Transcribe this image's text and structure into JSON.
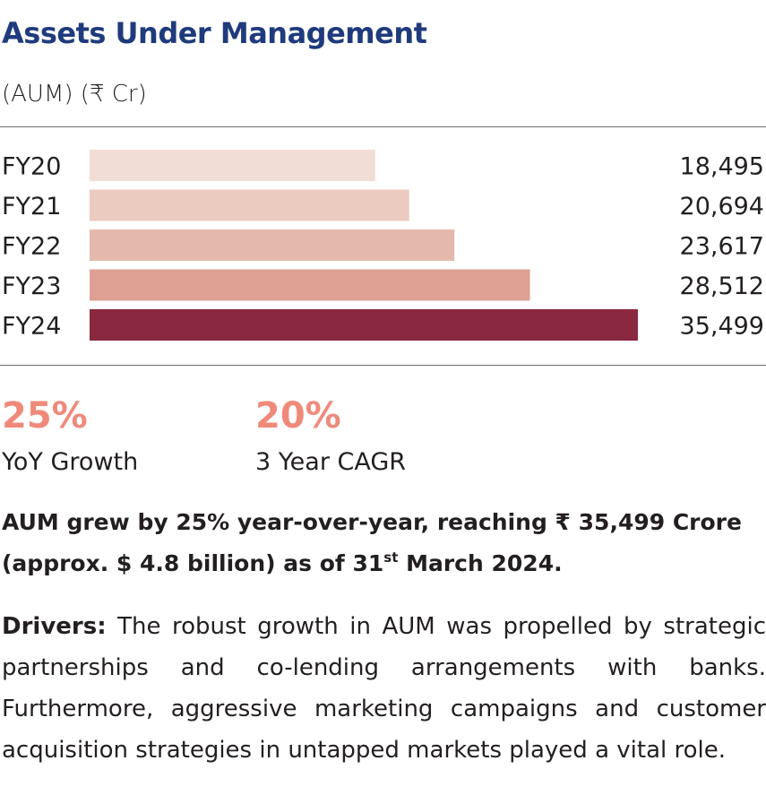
{
  "title": "Assets Under Management",
  "subtitle": "(AUM) (₹ Cr)",
  "chart_data": {
    "type": "bar",
    "orientation": "horizontal",
    "categories": [
      "FY20",
      "FY21",
      "FY22",
      "FY23",
      "FY24"
    ],
    "values": [
      18495,
      20694,
      23617,
      28512,
      35499
    ],
    "value_labels": [
      "18,495",
      "20,694",
      "23,617",
      "28,512",
      "35,499"
    ],
    "colors": [
      "#f2ddd6",
      "#ebcbc0",
      "#e4b9ab",
      "#dda092",
      "#8a2840"
    ],
    "xlim": [
      0,
      35499
    ],
    "grid": false,
    "legend": "none"
  },
  "stats": [
    {
      "value": "25%",
      "label": "YoY Growth"
    },
    {
      "value": "20%",
      "label": "3 Year CAGR"
    }
  ],
  "highlight": {
    "line1": "AUM grew by 25% year-over-year, reaching ₹ 35,499 Crore",
    "line2_pre": "(approx. $ 4.8 billion) as of 31",
    "line2_sup": "st",
    "line2_post": " March 2024."
  },
  "drivers": {
    "label": "Drivers:",
    "text": " The robust growth in AUM was propelled by strategic partnerships and co-lending arrangements with banks. Furthermore, aggressive marketing campaigns and customer acquisition strategies in untapped markets played a vital role."
  },
  "colors": {
    "title": "#1f3b7d",
    "accent": "#ef8a7a",
    "text": "#231f20",
    "rule": "#6d6e71"
  }
}
